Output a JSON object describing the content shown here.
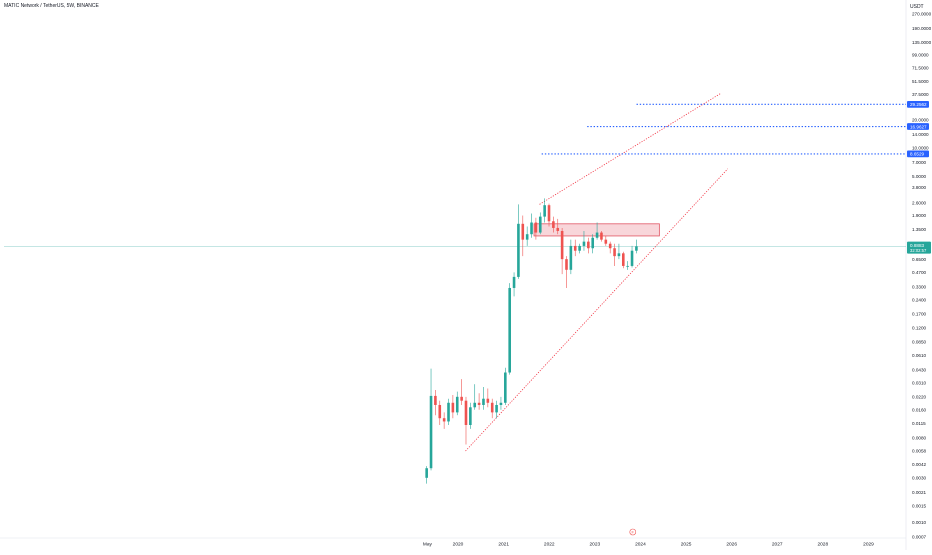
{
  "chart_data": {
    "type": "candlestick",
    "title": "MATIC Network / TetherUS, 5W, BINANCE",
    "currency": "USDT",
    "y_scale": "log",
    "y_ticks": [
      "0.0007",
      "0.0010",
      "0.0015",
      "0.0021",
      "0.0030",
      "0.0042",
      "0.0058",
      "0.0080",
      "0.0115",
      "0.0160",
      "0.0220",
      "0.0310",
      "0.0430",
      "0.0610",
      "0.0850",
      "0.1200",
      "0.1700",
      "0.2400",
      "0.3300",
      "0.4700",
      "0.6500",
      "0.9500",
      "1.3500",
      "1.9000",
      "2.6000",
      "3.8000",
      "5.0000",
      "7.0000",
      "10.0000",
      "14.0000",
      "20.0000",
      "28.5000",
      "37.5000",
      "51.5000",
      "71.5000",
      "99.0000",
      "135.0000",
      "190.0000",
      "270.0000"
    ],
    "x_ticks": [
      "May",
      "2020",
      "2021",
      "2022",
      "2023",
      "2024",
      "2025",
      "2026",
      "2027",
      "2028",
      "2029"
    ],
    "x_range": [
      "2019-04-01",
      "2029-12-31"
    ],
    "grid": false,
    "candles": [
      {
        "date": "2019-04-25",
        "open": 0.003,
        "high": 0.004,
        "low": 0.0026,
        "close": 0.0038
      },
      {
        "date": "2019-05-30",
        "open": 0.0038,
        "high": 0.044,
        "low": 0.0036,
        "close": 0.0225
      },
      {
        "date": "2019-07-04",
        "open": 0.0225,
        "high": 0.026,
        "low": 0.014,
        "close": 0.018
      },
      {
        "date": "2019-08-08",
        "open": 0.018,
        "high": 0.02,
        "low": 0.011,
        "close": 0.013
      },
      {
        "date": "2019-09-12",
        "open": 0.013,
        "high": 0.015,
        "low": 0.01,
        "close": 0.012
      },
      {
        "date": "2019-10-17",
        "open": 0.012,
        "high": 0.021,
        "low": 0.011,
        "close": 0.019
      },
      {
        "date": "2019-11-21",
        "open": 0.019,
        "high": 0.023,
        "low": 0.013,
        "close": 0.015
      },
      {
        "date": "2019-12-26",
        "open": 0.015,
        "high": 0.025,
        "low": 0.014,
        "close": 0.022
      },
      {
        "date": "2020-01-30",
        "open": 0.022,
        "high": 0.034,
        "low": 0.018,
        "close": 0.02
      },
      {
        "date": "2020-03-05",
        "open": 0.02,
        "high": 0.022,
        "low": 0.0068,
        "close": 0.011
      },
      {
        "date": "2020-04-09",
        "open": 0.011,
        "high": 0.019,
        "low": 0.01,
        "close": 0.017
      },
      {
        "date": "2020-05-14",
        "open": 0.017,
        "high": 0.03,
        "low": 0.016,
        "close": 0.019
      },
      {
        "date": "2020-06-18",
        "open": 0.019,
        "high": 0.024,
        "low": 0.016,
        "close": 0.018
      },
      {
        "date": "2020-07-23",
        "open": 0.018,
        "high": 0.028,
        "low": 0.016,
        "close": 0.021
      },
      {
        "date": "2020-08-27",
        "open": 0.021,
        "high": 0.027,
        "low": 0.017,
        "close": 0.019
      },
      {
        "date": "2020-10-01",
        "open": 0.019,
        "high": 0.021,
        "low": 0.013,
        "close": 0.015
      },
      {
        "date": "2020-11-05",
        "open": 0.015,
        "high": 0.02,
        "low": 0.013,
        "close": 0.018
      },
      {
        "date": "2020-12-10",
        "open": 0.018,
        "high": 0.022,
        "low": 0.016,
        "close": 0.019
      },
      {
        "date": "2021-01-14",
        "open": 0.019,
        "high": 0.045,
        "low": 0.018,
        "close": 0.04
      },
      {
        "date": "2021-02-18",
        "open": 0.04,
        "high": 0.36,
        "low": 0.038,
        "close": 0.32
      },
      {
        "date": "2021-03-25",
        "open": 0.32,
        "high": 0.47,
        "low": 0.26,
        "close": 0.42
      },
      {
        "date": "2021-04-29",
        "open": 0.42,
        "high": 2.5,
        "low": 0.4,
        "close": 1.55
      },
      {
        "date": "2021-06-03",
        "open": 1.55,
        "high": 1.9,
        "low": 0.7,
        "close": 1.05
      },
      {
        "date": "2021-07-08",
        "open": 1.05,
        "high": 1.45,
        "low": 0.9,
        "close": 1.2
      },
      {
        "date": "2021-08-12",
        "open": 1.2,
        "high": 2.0,
        "low": 1.1,
        "close": 1.6
      },
      {
        "date": "2021-09-16",
        "open": 1.6,
        "high": 1.8,
        "low": 1.05,
        "close": 1.25
      },
      {
        "date": "2021-10-21",
        "open": 1.25,
        "high": 2.05,
        "low": 1.2,
        "close": 1.85
      },
      {
        "date": "2021-11-25",
        "open": 1.85,
        "high": 2.9,
        "low": 1.6,
        "close": 2.45
      },
      {
        "date": "2021-12-30",
        "open": 2.45,
        "high": 2.55,
        "low": 1.45,
        "close": 1.65
      },
      {
        "date": "2022-02-03",
        "open": 1.65,
        "high": 1.85,
        "low": 1.25,
        "close": 1.4
      },
      {
        "date": "2022-03-10",
        "open": 1.4,
        "high": 1.75,
        "low": 1.2,
        "close": 1.3
      },
      {
        "date": "2022-04-14",
        "open": 1.3,
        "high": 1.4,
        "low": 0.45,
        "close": 0.65
      },
      {
        "date": "2022-05-19",
        "open": 0.65,
        "high": 0.7,
        "low": 0.32,
        "close": 0.5
      },
      {
        "date": "2022-06-23",
        "open": 0.5,
        "high": 1.05,
        "low": 0.45,
        "close": 0.9
      },
      {
        "date": "2022-07-28",
        "open": 0.9,
        "high": 1.05,
        "low": 0.7,
        "close": 0.8
      },
      {
        "date": "2022-09-01",
        "open": 0.8,
        "high": 0.95,
        "low": 0.75,
        "close": 0.9
      },
      {
        "date": "2022-10-06",
        "open": 0.9,
        "high": 1.3,
        "low": 0.8,
        "close": 1.0
      },
      {
        "date": "2022-11-10",
        "open": 1.0,
        "high": 1.1,
        "low": 0.75,
        "close": 0.85
      },
      {
        "date": "2022-12-15",
        "open": 0.85,
        "high": 1.2,
        "low": 0.75,
        "close": 1.1
      },
      {
        "date": "2023-01-19",
        "open": 1.1,
        "high": 1.6,
        "low": 1.05,
        "close": 1.25
      },
      {
        "date": "2023-02-23",
        "open": 1.25,
        "high": 1.3,
        "low": 1.0,
        "close": 1.05
      },
      {
        "date": "2023-03-30",
        "open": 1.05,
        "high": 1.15,
        "low": 0.9,
        "close": 0.95
      },
      {
        "date": "2023-05-04",
        "open": 0.95,
        "high": 1.0,
        "low": 0.75,
        "close": 0.85
      },
      {
        "date": "2023-06-08",
        "open": 0.85,
        "high": 0.95,
        "low": 0.55,
        "close": 0.7
      },
      {
        "date": "2023-07-13",
        "open": 0.7,
        "high": 0.95,
        "low": 0.65,
        "close": 0.75
      },
      {
        "date": "2023-08-17",
        "open": 0.75,
        "high": 0.78,
        "low": 0.52,
        "close": 0.55
      },
      {
        "date": "2023-09-21",
        "open": 0.55,
        "high": 0.62,
        "low": 0.5,
        "close": 0.55
      },
      {
        "date": "2023-10-26",
        "open": 0.55,
        "high": 0.9,
        "low": 0.53,
        "close": 0.8
      },
      {
        "date": "2023-11-30",
        "open": 0.8,
        "high": 1.05,
        "low": 0.75,
        "close": 0.89
      }
    ],
    "last_price": {
      "value": 0.89,
      "label": "0.8883",
      "countdown": "32:02:57"
    },
    "resistance_zone": {
      "start": "2021-09-01",
      "end": "2024-06-01",
      "low": 1.15,
      "high": 1.55
    },
    "lower_trendline": {
      "start": [
        "2020-03-01",
        0.0058
      ],
      "end": [
        "2025-12-01",
        6.0
      ]
    },
    "upper_trendline": {
      "start": [
        "2021-10-15",
        2.5
      ],
      "end": [
        "2025-10-01",
        38.0
      ]
    },
    "target_levels": [
      {
        "label": "29.2562",
        "value": 29.2562,
        "start": "2023-12-01"
      },
      {
        "label": "16.9627",
        "value": 16.9627,
        "start": "2022-11-01"
      },
      {
        "label": "8.6529",
        "value": 8.6529,
        "start": "2021-11-01"
      }
    ],
    "event_marker": {
      "label": "F",
      "date": "2023-11-01"
    },
    "colors": {
      "up": "#26a69a",
      "down": "#ef5350",
      "trendline": "#f23645",
      "target": "#2962ff",
      "zone_fill": "#f7cfd4",
      "zone_border": "#e05563",
      "price_line": "#26a69a",
      "axis_text": "#131722"
    }
  }
}
